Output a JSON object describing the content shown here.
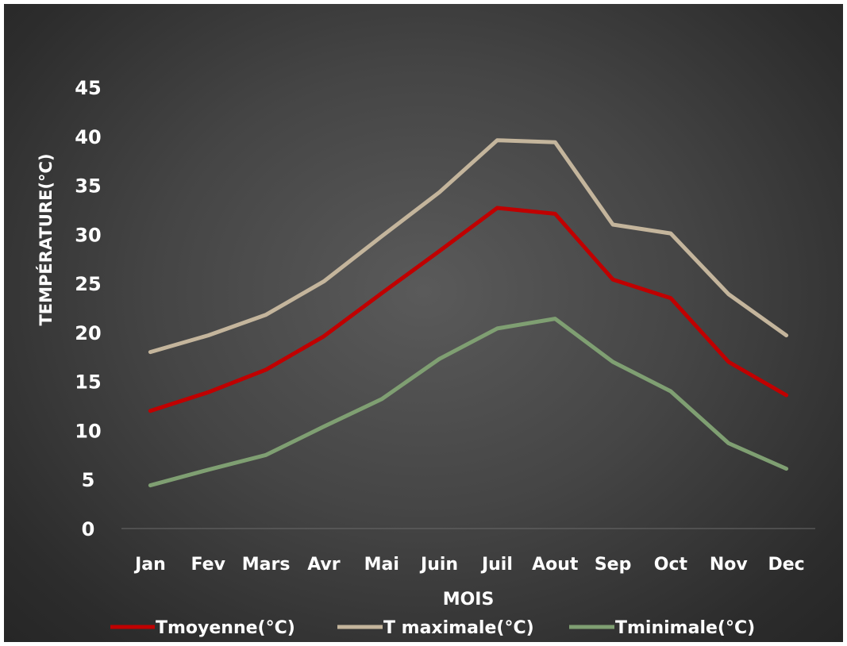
{
  "chart_data": {
    "type": "line",
    "title": "",
    "xlabel": "MOIS",
    "ylabel": "TEMPÉRATURE(°C)",
    "categories": [
      "Jan",
      "Fev",
      "Mars",
      "Avr",
      "Mai",
      "Juin",
      "Juil",
      "Aout",
      "Sep",
      "Oct",
      "Nov",
      "Dec"
    ],
    "ylim": [
      0,
      45
    ],
    "yticks": [
      0,
      5,
      10,
      15,
      20,
      25,
      30,
      35,
      40,
      45
    ],
    "grid": false,
    "legend_position": "bottom",
    "series": [
      {
        "name": "Tmoyenne(°C)",
        "color": "#c00000",
        "values": [
          12.0,
          13.9,
          16.2,
          19.6,
          24.0,
          28.3,
          32.7,
          32.1,
          25.4,
          23.5,
          17.0,
          13.6
        ]
      },
      {
        "name": "T maximale(°C)",
        "color": "#c4b59c",
        "values": [
          18.0,
          19.7,
          21.8,
          25.2,
          29.8,
          34.3,
          39.6,
          39.4,
          31.0,
          30.1,
          23.9,
          19.7
        ]
      },
      {
        "name": "Tminimale(°C)",
        "color": "#7f9f72",
        "values": [
          4.4,
          6.0,
          7.5,
          10.4,
          13.2,
          17.3,
          20.4,
          21.4,
          17.0,
          14.0,
          8.7,
          6.1
        ]
      }
    ]
  }
}
